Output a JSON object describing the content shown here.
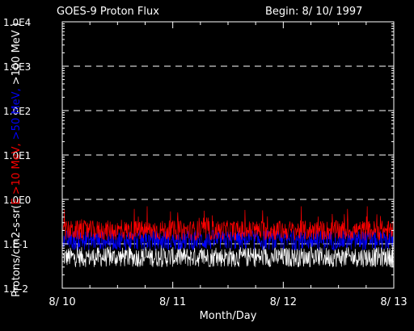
{
  "chart_data": {
    "type": "line",
    "title": "GOES-9 Proton Flux",
    "begin_label": "Begin: 8/ 10/ 1997",
    "xlabel": "Month/Day",
    "ylabel": {
      "prefix": "Protons/cm2-s-sr(",
      "parts": [
        {
          "text": "E >10 MeV,",
          "color": "#ff0000"
        },
        {
          "text": " >50 MeV,",
          "color": "#0000ff"
        },
        {
          "text": " >100 MeV )",
          "color": "#ffffff"
        }
      ]
    },
    "y_scale": "log",
    "ylim": [
      0.01,
      10000
    ],
    "y_ticks": [
      "1.0E4",
      "1.0E3",
      "1.0E2",
      "1.0E1",
      "1.0E0",
      "1.E-1",
      "1.E-2"
    ],
    "x_ticks": [
      "8/ 10",
      "8/ 11",
      "8/ 12",
      "8/ 13"
    ],
    "grid": "dashed horizontal",
    "series": [
      {
        "name": "E >10 MeV",
        "color": "#ff0000",
        "baseline": 0.2,
        "peak_max": 0.7
      },
      {
        "name": ">50 MeV",
        "color": "#0000ff",
        "baseline": 0.12,
        "peak_max": 0.2
      },
      {
        "name": ">100 MeV",
        "color": "#ffffff",
        "baseline": 0.05,
        "peak_max": 0.12
      }
    ]
  }
}
